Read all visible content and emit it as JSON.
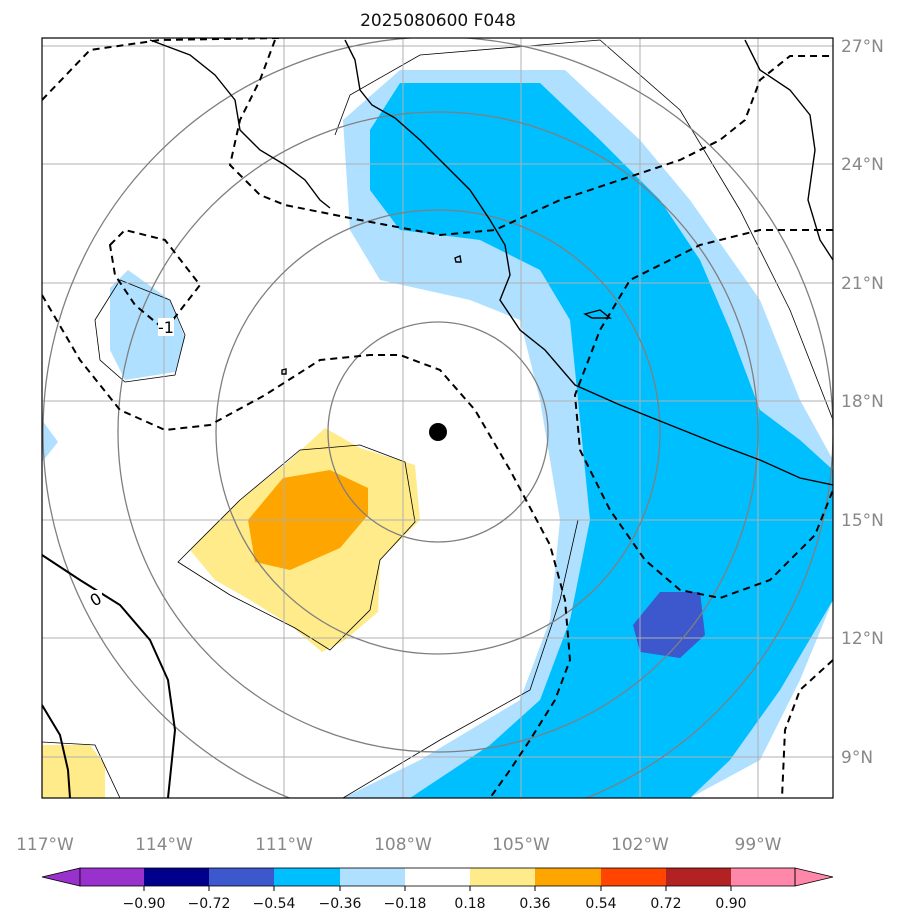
{
  "title": "2025080600 F048",
  "colors": {
    "grid": "#b0b0b0",
    "range_rings": "#7f7f7f",
    "coastline": "#000000",
    "contour_dashed": "#000000",
    "storm_center": "#000000"
  },
  "map": {
    "lon_labels": [
      "117°W",
      "114°W",
      "111°W",
      "108°W",
      "105°W",
      "102°W",
      "99°W"
    ],
    "lat_labels": [
      "27°N",
      "24°N",
      "21°N",
      "18°N",
      "15°N",
      "12°N",
      "9°N"
    ],
    "contour_labels": [
      "-1",
      "0"
    ],
    "storm_center": {
      "lat": 17.2,
      "lon": -107.2
    },
    "fill_regions": [
      {
        "name": "east-light-blue",
        "color": "#b0e0ff",
        "value_bin": "-0.36 to -0.18"
      },
      {
        "name": "east-blue",
        "color": "#00bfff",
        "value_bin": "-0.54 to -0.36"
      },
      {
        "name": "southeast-dark-blue",
        "color": "#3c58cc",
        "value_bin": "-0.72 to -0.54"
      },
      {
        "name": "west-light-blue",
        "color": "#b0e0ff",
        "value_bin": "-0.36 to -0.18"
      },
      {
        "name": "edge-light-blue",
        "color": "#b0e0ff",
        "value_bin": "-0.36 to -0.18"
      },
      {
        "name": "center-yellow",
        "color": "#ffeb8a",
        "value_bin": "0.18 to 0.36"
      },
      {
        "name": "center-orange",
        "color": "#ffa500",
        "value_bin": "0.36 to 0.54"
      },
      {
        "name": "southwest-yellow",
        "color": "#ffeb8a",
        "value_bin": "0.18 to 0.36"
      }
    ]
  },
  "colorbar": {
    "labels": [
      "−0.90",
      "−0.72",
      "−0.54",
      "−0.36",
      "−0.18",
      "0.18",
      "0.36",
      "0.54",
      "0.72",
      "0.90"
    ],
    "under_color": "#9932cc",
    "over_color": "#ff88aa",
    "colors": [
      "#00008b",
      "#3c58cc",
      "#00bfff",
      "#b0e0ff",
      "#ffffff",
      "#ffeb8a",
      "#ffa500",
      "#ff4500",
      "#b22222"
    ]
  }
}
